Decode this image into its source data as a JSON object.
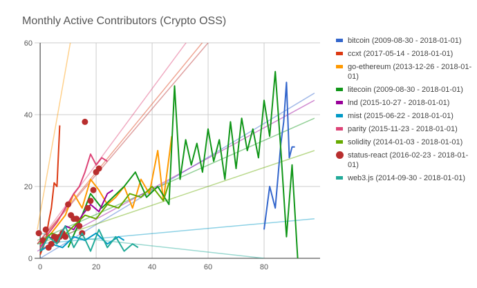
{
  "chart_data": {
    "type": "line",
    "title": "Monthly Active Contributors (Crypto OSS)",
    "xlabel": "",
    "ylabel": "",
    "xlim": [
      -2,
      100
    ],
    "ylim": [
      0,
      60
    ],
    "xticks": [
      0,
      20,
      40,
      60,
      80
    ],
    "yticks": [
      0,
      20,
      40,
      60
    ],
    "grid": true,
    "legend_position": "right",
    "series": [
      {
        "name": "bitcoin (2009-08-30 - 2018-01-01)",
        "color": "#3366cc",
        "style": "line",
        "x": [
          80,
          82,
          84,
          86,
          87,
          88,
          89,
          90,
          91
        ],
        "y": [
          8,
          20,
          14,
          32,
          38,
          49,
          28,
          31,
          31
        ],
        "trend": [
          [
            0,
            0
          ],
          [
            98,
            46
          ]
        ]
      },
      {
        "name": "ccxt (2017-05-14 - 2018-01-01)",
        "color": "#dc3912",
        "style": "line",
        "x": [
          0,
          1,
          2,
          3,
          4,
          5,
          6,
          7
        ],
        "y": [
          1,
          3,
          5,
          10,
          14,
          21,
          20,
          37
        ],
        "trend": [
          [
            -1,
            4
          ],
          [
            60,
            62
          ]
        ]
      },
      {
        "name": "go-ethereum (2013-12-26 - 2018-01-01)",
        "color": "#ff9900",
        "style": "line",
        "x": [
          0,
          3,
          6,
          9,
          12,
          15,
          18,
          21,
          24,
          27,
          30,
          33,
          36,
          39,
          42,
          44,
          46,
          47
        ],
        "y": [
          3,
          6,
          9,
          12,
          18,
          14,
          22,
          19,
          15,
          17,
          20,
          14,
          22,
          18,
          30,
          16,
          28,
          34
        ],
        "trend": [
          [
            -1,
            8
          ],
          [
            11,
            61
          ]
        ]
      },
      {
        "name": "litecoin (2009-08-30 - 2018-01-01)",
        "color": "#109618",
        "style": "line",
        "x": [
          10,
          14,
          18,
          22,
          26,
          30,
          34,
          38,
          42,
          46,
          48,
          50,
          52,
          54,
          56,
          58,
          60,
          62,
          64,
          66,
          68,
          70,
          72,
          74,
          76,
          78,
          80,
          82,
          84,
          86,
          88,
          90,
          92
        ],
        "y": [
          3,
          10,
          18,
          14,
          17,
          20,
          24,
          17,
          20,
          15,
          48,
          22,
          33,
          26,
          32,
          24,
          36,
          27,
          33,
          22,
          38,
          25,
          39,
          30,
          36,
          28,
          44,
          34,
          52,
          30,
          6,
          26,
          0
        ],
        "trend": [
          [
            -1,
            5
          ],
          [
            98,
            39
          ]
        ]
      },
      {
        "name": "lnd (2015-10-27 - 2018-01-01)",
        "color": "#990099",
        "style": "line",
        "x": [
          0,
          3,
          6,
          9,
          12,
          15,
          18,
          21,
          24,
          26
        ],
        "y": [
          3,
          6,
          5,
          9,
          8,
          12,
          15,
          13,
          18,
          19
        ],
        "trend": [
          [
            -1,
            2
          ],
          [
            98,
            44
          ]
        ]
      },
      {
        "name": "mist (2015-06-22 - 2018-01-01)",
        "color": "#0099c6",
        "style": "line",
        "x": [
          0,
          4,
          8,
          12,
          16,
          20,
          24,
          28,
          30
        ],
        "y": [
          2,
          4,
          3,
          6,
          5,
          7,
          4,
          6,
          5
        ],
        "trend": [
          [
            -1,
            4
          ],
          [
            98,
            11
          ]
        ]
      },
      {
        "name": "parity (2015-11-23 - 2018-01-01)",
        "color": "#dd4477",
        "style": "line",
        "x": [
          0,
          3,
          6,
          9,
          12,
          14,
          16,
          18,
          20,
          22,
          24
        ],
        "y": [
          3,
          7,
          10,
          14,
          18,
          20,
          24,
          29,
          26,
          28,
          27
        ],
        "trend": [
          [
            -1,
            4
          ],
          [
            54,
            62
          ]
        ]
      },
      {
        "name": "solidity (2014-01-03 - 2018-01-01)",
        "color": "#66aa00",
        "style": "line",
        "x": [
          0,
          4,
          8,
          12,
          16,
          20,
          24,
          28,
          32,
          36,
          40,
          44,
          46
        ],
        "y": [
          4,
          7,
          6,
          9,
          12,
          11,
          15,
          14,
          18,
          17,
          20,
          16,
          21
        ],
        "trend": [
          [
            -1,
            4
          ],
          [
            98,
            30
          ]
        ]
      },
      {
        "name": "status-react (2016-02-23 - 2018-01-01)",
        "color": "#b82e2e",
        "style": "dots",
        "x": [
          -0.5,
          1,
          2,
          3,
          4,
          5,
          6,
          7,
          8,
          9,
          10,
          11,
          12,
          13,
          14,
          15,
          16,
          17,
          18,
          19,
          20,
          21
        ],
        "y": [
          7,
          5,
          8,
          3,
          4,
          6,
          5,
          6,
          7,
          6,
          15,
          12,
          11,
          11,
          9,
          7,
          38,
          14,
          16,
          19,
          24,
          25
        ],
        "trend": [
          [
            -1,
            4
          ],
          [
            60,
            60
          ]
        ]
      },
      {
        "name": "web3.js (2014-09-30 - 2018-01-01)",
        "color": "#22aa99",
        "style": "line",
        "x": [
          0,
          3,
          6,
          9,
          12,
          15,
          18,
          21,
          24,
          27,
          30,
          33,
          35
        ],
        "y": [
          2,
          6,
          4,
          9,
          3,
          7,
          2,
          8,
          3,
          6,
          2,
          4,
          3
        ],
        "trend": [
          [
            -1,
            7
          ],
          [
            80,
            0
          ]
        ]
      }
    ]
  }
}
